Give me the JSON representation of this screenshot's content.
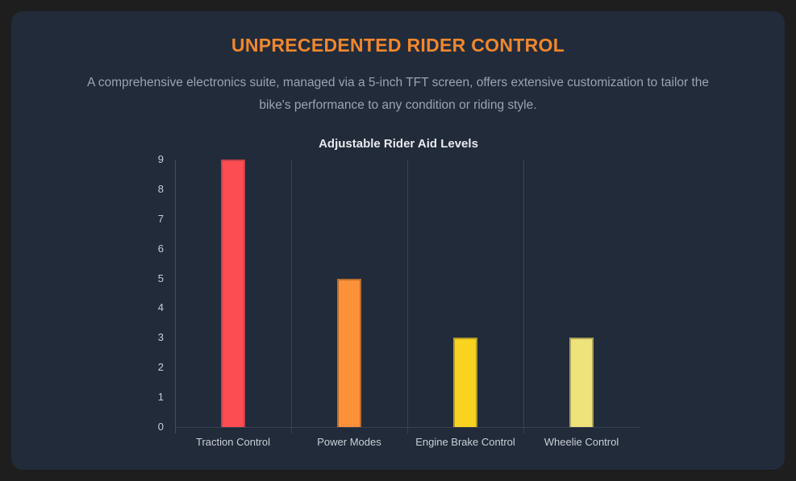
{
  "header": {
    "title": "UNPRECEDENTED RIDER CONTROL",
    "subtitle_lines": [
      "A comprehensive electronics suite, managed via a 5-inch TFT screen, offers extensive customization to tailor the",
      "bike's performance to any condition or riding style."
    ]
  },
  "colors": {
    "page_background": "#1e1e1e",
    "card_background": "#222b3a",
    "title_accent": "#f0872e",
    "subtitle_text": "#9aa3b0",
    "chart_title_text": "#e8eaed",
    "axis_label_text": "#c9ced5",
    "gridline": "#3a4150",
    "axis_line": "#454c59"
  },
  "chart_data": {
    "type": "bar",
    "title": "Adjustable Rider Aid Levels",
    "categories": [
      "Traction Control",
      "Power Modes",
      "Engine Brake Control",
      "Wheelie Control"
    ],
    "values": [
      9,
      5,
      3,
      3
    ],
    "bar_colors": [
      "#fb4d52",
      "#fb9138",
      "#f9d320",
      "#eee27b"
    ],
    "bar_border_colors": [
      "#c7424a",
      "#b86d2e",
      "#b29b24",
      "#a9a158"
    ],
    "xlabel": "",
    "ylabel": "",
    "ylim": [
      0,
      9
    ],
    "yticks": [
      0,
      1,
      2,
      3,
      4,
      5,
      6,
      7,
      8,
      9
    ],
    "grid": "vertical category separators only",
    "legend_position": "none"
  }
}
